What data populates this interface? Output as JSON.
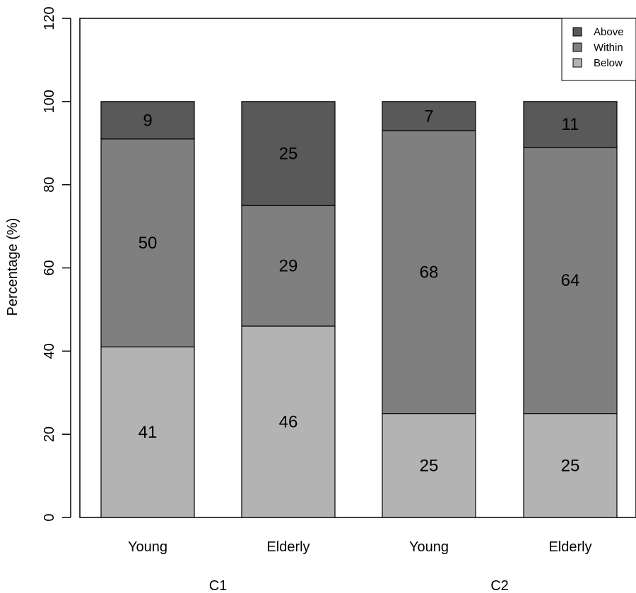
{
  "chart_data": {
    "type": "bar",
    "stacked": true,
    "ylabel": "Percentage (%)",
    "ylim": [
      0,
      120
    ],
    "yticks": [
      0,
      20,
      40,
      60,
      80,
      100,
      120
    ],
    "categories": [
      "Young",
      "Elderly",
      "Young",
      "Elderly"
    ],
    "groups": [
      {
        "label": "C1",
        "categories": [
          "Young",
          "Elderly"
        ]
      },
      {
        "label": "C2",
        "categories": [
          "Young",
          "Elderly"
        ]
      }
    ],
    "series": [
      {
        "name": "Below",
        "color": "#b3b3b3",
        "values": [
          41,
          46,
          25,
          25
        ]
      },
      {
        "name": "Within",
        "color": "#7f7f7f",
        "values": [
          50,
          29,
          68,
          64
        ]
      },
      {
        "name": "Above",
        "color": "#595959",
        "values": [
          9,
          25,
          7,
          11
        ]
      }
    ],
    "legend": {
      "position": "top-right",
      "entries": [
        "Above",
        "Within",
        "Below"
      ]
    },
    "grid": false
  }
}
